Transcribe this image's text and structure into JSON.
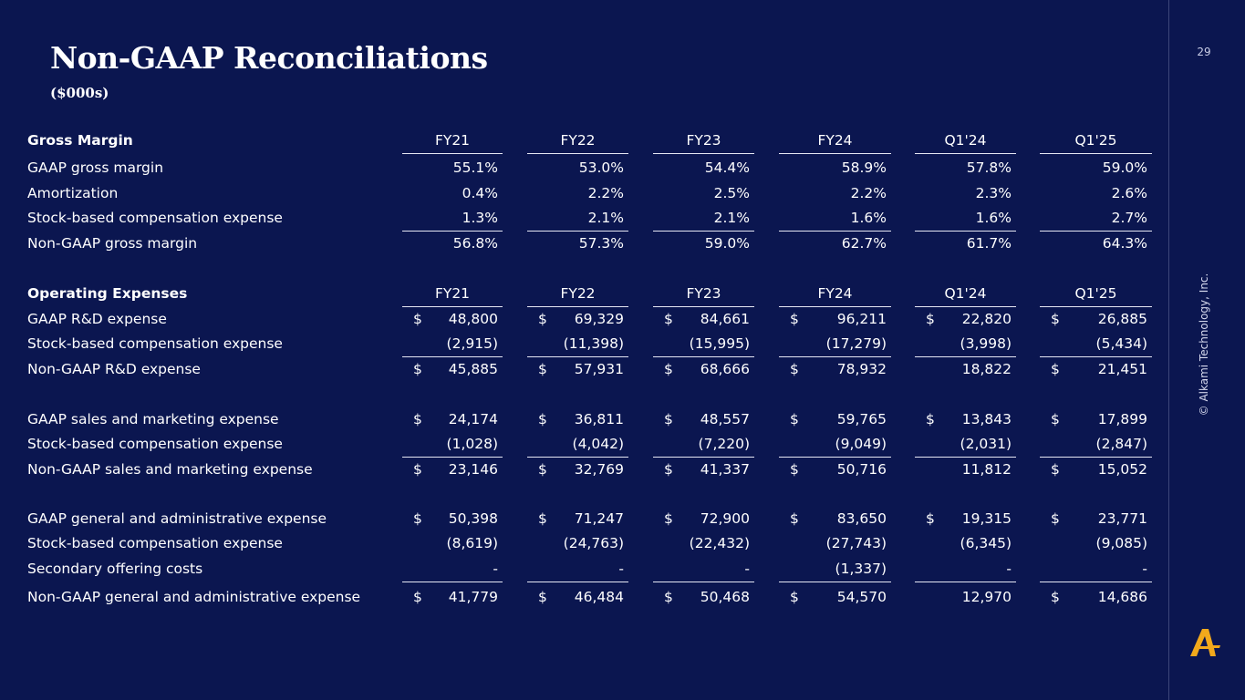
{
  "page": {
    "title": "Non-GAAP Reconciliations",
    "subtitle": "($000s)",
    "page_number": "29",
    "copyright": "© Alkami Technology, Inc.",
    "logo_icon": "alkami-a-logo-icon",
    "colors": {
      "background": "#0b1650",
      "text": "#ffffff",
      "logo": "#f2a91c",
      "rule": "#e6e8f4"
    }
  },
  "rows": [
    {
      "name": "gross-margin-header",
      "type": "section",
      "label": "Gross Margin",
      "cells": [
        {
          "val": "FY21"
        },
        {
          "val": "FY22"
        },
        {
          "val": "FY23"
        },
        {
          "val": "FY24"
        },
        {
          "val": "Q1'24"
        },
        {
          "val": "Q1'25"
        }
      ]
    },
    {
      "name": "gaap-gross-margin",
      "type": "data",
      "label": "GAAP gross margin",
      "cells": [
        {
          "val": "55.1%"
        },
        {
          "val": "53.0%"
        },
        {
          "val": "54.4%"
        },
        {
          "val": "58.9%"
        },
        {
          "val": "57.8%"
        },
        {
          "val": "59.0%"
        }
      ]
    },
    {
      "name": "amortization",
      "type": "data",
      "label": "Amortization",
      "cells": [
        {
          "val": "0.4%"
        },
        {
          "val": "2.2%"
        },
        {
          "val": "2.5%"
        },
        {
          "val": "2.2%"
        },
        {
          "val": "2.3%"
        },
        {
          "val": "2.6%"
        }
      ]
    },
    {
      "name": "gm-stock-comp",
      "type": "data",
      "label": "Stock-based compensation expense",
      "cells": [
        {
          "val": "1.3%"
        },
        {
          "val": "2.1%"
        },
        {
          "val": "2.1%"
        },
        {
          "val": "1.6%"
        },
        {
          "val": "1.6%"
        },
        {
          "val": "2.7%"
        }
      ]
    },
    {
      "name": "non-gaap-gross-margin",
      "type": "total",
      "label": "Non-GAAP gross margin",
      "cells": [
        {
          "val": "56.8%"
        },
        {
          "val": "57.3%"
        },
        {
          "val": "59.0%"
        },
        {
          "val": "62.7%"
        },
        {
          "val": "61.7%"
        },
        {
          "val": "64.3%"
        }
      ]
    },
    {
      "name": "operating-expenses-header",
      "type": "section",
      "label": "Operating Expenses",
      "cells": [
        {
          "val": "FY21"
        },
        {
          "val": "FY22"
        },
        {
          "val": "FY23"
        },
        {
          "val": "FY24"
        },
        {
          "val": "Q1'24"
        },
        {
          "val": "Q1'25"
        }
      ]
    },
    {
      "name": "gaap-rd-expense",
      "type": "data",
      "label": "GAAP R&D expense",
      "cells": [
        {
          "d": "$",
          "val": "48,800"
        },
        {
          "d": "$",
          "val": "69,329"
        },
        {
          "d": "$",
          "val": "84,661"
        },
        {
          "d": "$",
          "val": "96,211"
        },
        {
          "d": "$",
          "val": "22,820"
        },
        {
          "d": "$",
          "val": "26,885"
        }
      ]
    },
    {
      "name": "rd-stock-comp",
      "type": "data",
      "label": "Stock-based compensation expense",
      "cells": [
        {
          "val": "(2,915)"
        },
        {
          "val": "(11,398)"
        },
        {
          "val": "(15,995)"
        },
        {
          "val": "(17,279)"
        },
        {
          "val": "(3,998)"
        },
        {
          "val": "(5,434)"
        }
      ]
    },
    {
      "name": "non-gaap-rd-expense",
      "type": "total",
      "label": "Non-GAAP R&D expense",
      "cells": [
        {
          "d": "$",
          "val": "45,885"
        },
        {
          "d": "$",
          "val": "57,931"
        },
        {
          "d": "$",
          "val": "68,666"
        },
        {
          "d": "$",
          "val": "78,932"
        },
        {
          "val": "18,822"
        },
        {
          "d": "$",
          "val": "21,451"
        }
      ]
    },
    {
      "name": "gaap-sm-expense",
      "type": "data",
      "label": "GAAP sales and marketing expense",
      "cells": [
        {
          "d": "$",
          "val": "24,174"
        },
        {
          "d": "$",
          "val": "36,811"
        },
        {
          "d": "$",
          "val": "48,557"
        },
        {
          "d": "$",
          "val": "59,765"
        },
        {
          "d": "$",
          "val": "13,843"
        },
        {
          "d": "$",
          "val": "17,899"
        }
      ]
    },
    {
      "name": "sm-stock-comp",
      "type": "data",
      "label": "Stock-based compensation expense",
      "cells": [
        {
          "val": "(1,028)"
        },
        {
          "val": "(4,042)"
        },
        {
          "val": "(7,220)"
        },
        {
          "val": "(9,049)"
        },
        {
          "val": "(2,031)"
        },
        {
          "val": "(2,847)"
        }
      ]
    },
    {
      "name": "non-gaap-sm-expense",
      "type": "total",
      "label": "Non-GAAP sales and marketing expense",
      "cells": [
        {
          "d": "$",
          "val": "23,146"
        },
        {
          "d": "$",
          "val": "32,769"
        },
        {
          "d": "$",
          "val": "41,337"
        },
        {
          "d": "$",
          "val": "50,716"
        },
        {
          "val": "11,812"
        },
        {
          "d": "$",
          "val": "15,052"
        }
      ]
    },
    {
      "name": "gaap-ga-expense",
      "type": "data",
      "label": "GAAP general and administrative expense",
      "cells": [
        {
          "d": "$",
          "val": "50,398"
        },
        {
          "d": "$",
          "val": "71,247"
        },
        {
          "d": "$",
          "val": "72,900"
        },
        {
          "d": "$",
          "val": "83,650"
        },
        {
          "d": "$",
          "val": "19,315"
        },
        {
          "d": "$",
          "val": "23,771"
        }
      ]
    },
    {
      "name": "ga-stock-comp",
      "type": "data",
      "label": "Stock-based compensation expense",
      "cells": [
        {
          "val": "(8,619)"
        },
        {
          "val": "(24,763)"
        },
        {
          "val": "(22,432)"
        },
        {
          "val": "(27,743)"
        },
        {
          "val": "(6,345)"
        },
        {
          "val": "(9,085)"
        }
      ]
    },
    {
      "name": "secondary-offering-costs",
      "type": "data",
      "label": "Secondary offering costs",
      "cells": [
        {
          "val": "-"
        },
        {
          "val": "-"
        },
        {
          "val": "-"
        },
        {
          "val": "(1,337)"
        },
        {
          "val": "-"
        },
        {
          "val": "-"
        }
      ]
    },
    {
      "name": "non-gaap-ga-expense",
      "type": "total",
      "label": "Non-GAAP general and administrative expense",
      "cells": [
        {
          "d": "$",
          "val": "41,779"
        },
        {
          "d": "$",
          "val": "46,484"
        },
        {
          "d": "$",
          "val": "50,468"
        },
        {
          "d": "$",
          "val": "54,570"
        },
        {
          "val": "12,970"
        },
        {
          "d": "$",
          "val": "14,686"
        }
      ]
    }
  ]
}
